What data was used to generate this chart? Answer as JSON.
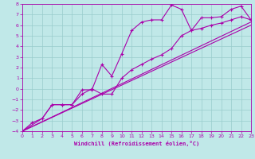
{
  "xlabel": "Windchill (Refroidissement éolien,°C)",
  "xlim": [
    0,
    23
  ],
  "ylim": [
    -4,
    8
  ],
  "xticks": [
    0,
    1,
    2,
    3,
    4,
    5,
    6,
    7,
    8,
    9,
    10,
    11,
    12,
    13,
    14,
    15,
    16,
    17,
    18,
    19,
    20,
    21,
    22,
    23
  ],
  "yticks": [
    -4,
    -3,
    -2,
    -1,
    0,
    1,
    2,
    3,
    4,
    5,
    6,
    7,
    8
  ],
  "bg_color": "#c0e8e8",
  "line_color": "#aa00aa",
  "grid_color": "#99cccc",
  "line1_x": [
    0,
    1,
    2,
    3,
    4,
    5,
    6,
    7,
    8,
    9,
    10,
    11,
    12,
    13,
    14,
    15,
    16,
    17,
    18,
    19,
    20,
    21,
    22,
    23
  ],
  "line1_y": [
    -4.0,
    -3.2,
    -2.8,
    -1.5,
    -1.5,
    -1.5,
    -0.1,
    -0.1,
    2.3,
    1.2,
    3.3,
    5.5,
    6.3,
    6.5,
    6.5,
    7.9,
    7.5,
    5.5,
    6.7,
    6.7,
    6.8,
    7.5,
    7.8,
    6.5
  ],
  "line2_x": [
    0,
    2,
    3,
    4,
    5,
    6,
    7,
    8,
    9,
    10,
    11,
    12,
    13,
    14,
    15,
    16,
    17,
    18,
    19,
    20,
    21,
    22,
    23
  ],
  "line2_y": [
    -4.0,
    -2.8,
    -1.5,
    -1.5,
    -1.5,
    -0.5,
    0.0,
    -0.5,
    -0.5,
    1.0,
    1.8,
    2.3,
    2.8,
    3.2,
    3.8,
    5.0,
    5.5,
    5.7,
    6.0,
    6.2,
    6.5,
    6.8,
    6.5
  ],
  "line3_x": [
    0,
    23
  ],
  "line3_y": [
    -4.0,
    6.3
  ],
  "line4_x": [
    0,
    23
  ],
  "line4_y": [
    -4.0,
    6.0
  ]
}
